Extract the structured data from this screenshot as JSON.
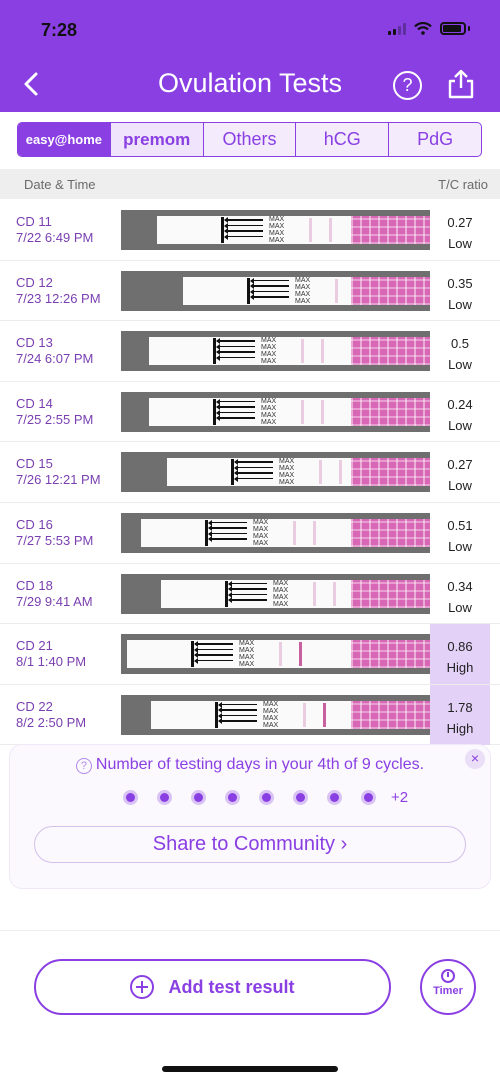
{
  "status_bar": {
    "time": "7:28"
  },
  "header": {
    "title": "Ovulation Tests",
    "help_label": "?"
  },
  "brand_tabs": [
    {
      "label": "easy@home",
      "active": true
    },
    {
      "label": "premom",
      "active": false
    },
    {
      "label": "Others",
      "active": false
    },
    {
      "label": "hCG",
      "active": false
    },
    {
      "label": "PdG",
      "active": false
    }
  ],
  "table_header": {
    "left": "Date & Time",
    "right": "T/C ratio"
  },
  "strip_marking": "MAX",
  "tests": [
    {
      "cd": "CD 11",
      "datetime": "7/22 6:49 PM",
      "ratio": "0.27",
      "level": "Low"
    },
    {
      "cd": "CD 12",
      "datetime": "7/23 12:26 PM",
      "ratio": "0.35",
      "level": "Low"
    },
    {
      "cd": "CD 13",
      "datetime": "7/24 6:07 PM",
      "ratio": "0.5",
      "level": "Low"
    },
    {
      "cd": "CD 14",
      "datetime": "7/25 2:55 PM",
      "ratio": "0.24",
      "level": "Low"
    },
    {
      "cd": "CD 15",
      "datetime": "7/26 12:21 PM",
      "ratio": "0.27",
      "level": "Low"
    },
    {
      "cd": "CD 16",
      "datetime": "7/27 5:53 PM",
      "ratio": "0.51",
      "level": "Low"
    },
    {
      "cd": "CD 18",
      "datetime": "7/29 9:41 AM",
      "ratio": "0.34",
      "level": "Low"
    },
    {
      "cd": "CD 21",
      "datetime": "8/1 1:40 PM",
      "ratio": "0.86",
      "level": "High"
    },
    {
      "cd": "CD 22",
      "datetime": "8/2 2:50 PM",
      "ratio": "1.78",
      "level": "High"
    }
  ],
  "summary": {
    "text": "Number of testing days in your 4th of 9 cycles.",
    "dot_count": 8,
    "more": "+2",
    "close_label": "×",
    "share_button": "Share to Community ›"
  },
  "actions": {
    "add_label": "Add test result",
    "timer_label": "Timer"
  },
  "colors": {
    "primary": "#8a3fe3",
    "high_bg": "#e4d1f7"
  }
}
